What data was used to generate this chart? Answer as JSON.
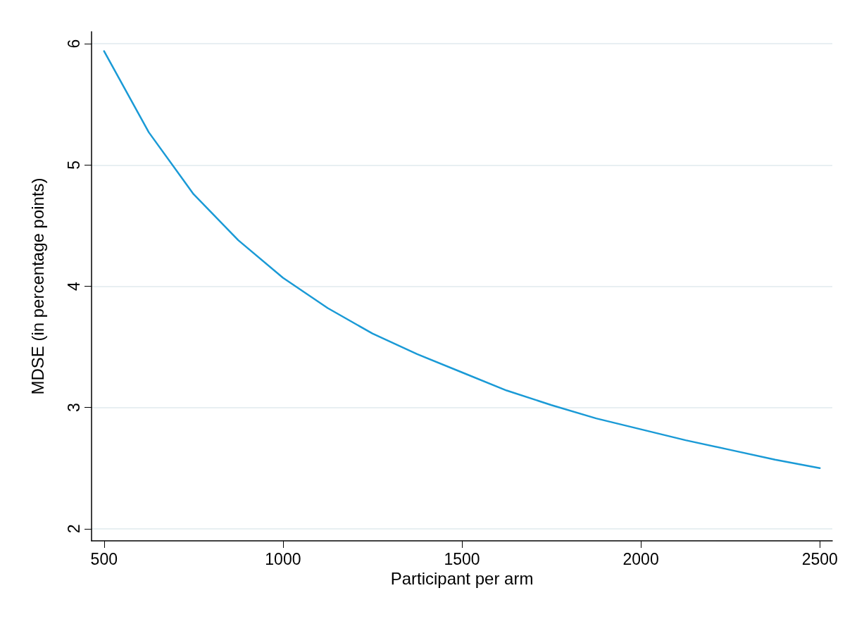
{
  "chart_data": {
    "type": "line",
    "xlabel": "Participant per arm",
    "ylabel": "MDSE (in percentage points)",
    "x": [
      500,
      625,
      750,
      875,
      1000,
      1125,
      1250,
      1375,
      1500,
      1625,
      1750,
      1875,
      2000,
      2125,
      2250,
      2375,
      2500
    ],
    "series": [
      {
        "color": "#1a9ad6",
        "values": [
          5.94,
          5.27,
          4.76,
          4.38,
          4.07,
          3.82,
          3.61,
          3.44,
          3.29,
          3.14,
          3.02,
          2.91,
          2.82,
          2.73,
          2.65,
          2.57,
          2.5
        ]
      }
    ],
    "xlim": [
      465,
      2535
    ],
    "ylim": [
      1.9,
      6.1
    ],
    "xticks": [
      500,
      1000,
      1500,
      2000,
      2500
    ],
    "yticks": [
      2,
      3,
      4,
      5,
      6
    ],
    "grid": "y",
    "marker": "none",
    "line_style": "solid"
  }
}
